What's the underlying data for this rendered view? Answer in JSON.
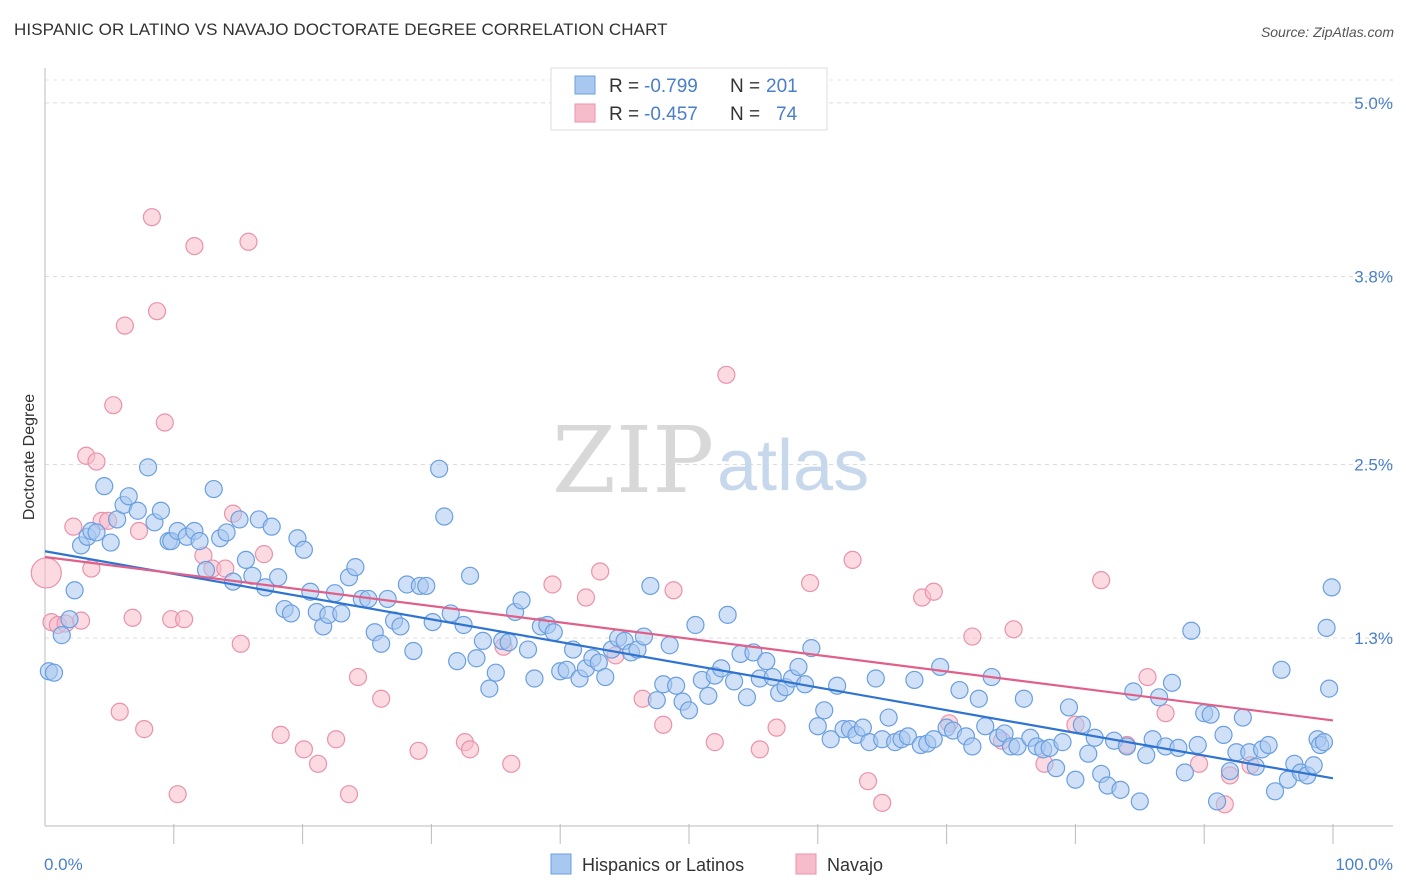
{
  "title": "HISPANIC OR LATINO VS NAVAJO DOCTORATE DEGREE CORRELATION CHART",
  "source": "Source: ZipAtlas.com",
  "watermark": {
    "part1": "ZIP",
    "part2": "atlas"
  },
  "legend_top": [
    {
      "r_label": "R = ",
      "r_value": "-0.799",
      "n_label": "N = ",
      "n_value": "201",
      "color": "#a9c8f0",
      "stroke": "#6a9fe0"
    },
    {
      "r_label": "R = ",
      "r_value": "-0.457",
      "n_label": "N = ",
      "n_value": "74",
      "color": "#f7bccb",
      "stroke": "#e993ab"
    }
  ],
  "legend_bottom": [
    {
      "label": "Hispanics or Latinos",
      "color": "#a9c8f0",
      "stroke": "#6a9fe0"
    },
    {
      "label": "Navajo",
      "color": "#f7bccb",
      "stroke": "#e993ab"
    }
  ],
  "colors": {
    "blue_fill": "#a9c8f0",
    "blue_stroke": "#6a9fe0",
    "blue_line": "#2f74d0",
    "pink_fill": "#f7bccb",
    "pink_stroke": "#e993ab",
    "pink_line": "#e0608a",
    "tick_text": "#4a7fc9"
  },
  "chart_data": {
    "type": "scatter",
    "title": "HISPANIC OR LATINO VS NAVAJO DOCTORATE DEGREE CORRELATION CHART",
    "xlabel": "",
    "ylabel": "Doctorate Degree",
    "xlim": [
      0,
      100
    ],
    "ylim": [
      0,
      5.2
    ],
    "x_tick_labels": [
      "0.0%",
      "100.0%"
    ],
    "y_ticks": [
      1.3,
      2.5,
      3.8,
      5.0
    ],
    "y_tick_labels": [
      "1.3%",
      "2.5%",
      "3.8%",
      "5.0%"
    ],
    "grid": true,
    "legend_position": "top-center",
    "series": [
      {
        "name": "Hispanics or Latinos",
        "r": -0.799,
        "n": 201,
        "trend": [
          [
            0,
            1.9
          ],
          [
            100,
            0.33
          ]
        ],
        "points": [
          [
            0.3,
            1.07
          ],
          [
            0.7,
            1.06
          ],
          [
            1.3,
            1.32
          ],
          [
            1.9,
            1.43
          ],
          [
            2.3,
            1.63
          ],
          [
            2.8,
            1.94
          ],
          [
            3.3,
            2.0
          ],
          [
            3.6,
            2.04
          ],
          [
            4.0,
            2.03
          ],
          [
            4.6,
            2.35
          ],
          [
            5.1,
            1.96
          ],
          [
            5.6,
            2.12
          ],
          [
            6.1,
            2.22
          ],
          [
            6.5,
            2.28
          ],
          [
            7.2,
            2.18
          ],
          [
            8.0,
            2.48
          ],
          [
            8.5,
            2.1
          ],
          [
            9.0,
            2.18
          ],
          [
            9.6,
            1.97
          ],
          [
            9.8,
            1.97
          ],
          [
            10.3,
            2.04
          ],
          [
            11.0,
            2.0
          ],
          [
            11.6,
            2.04
          ],
          [
            12.0,
            1.97
          ],
          [
            12.5,
            1.77
          ],
          [
            13.1,
            2.33
          ],
          [
            13.6,
            1.99
          ],
          [
            14.1,
            2.03
          ],
          [
            14.6,
            1.69
          ],
          [
            15.1,
            2.12
          ],
          [
            15.6,
            1.84
          ],
          [
            16.1,
            1.73
          ],
          [
            16.6,
            2.12
          ],
          [
            17.1,
            1.65
          ],
          [
            17.6,
            2.07
          ],
          [
            18.1,
            1.72
          ],
          [
            18.6,
            1.5
          ],
          [
            19.1,
            1.47
          ],
          [
            19.6,
            1.99
          ],
          [
            20.1,
            1.91
          ],
          [
            20.6,
            1.62
          ],
          [
            21.1,
            1.48
          ],
          [
            21.6,
            1.38
          ],
          [
            22.0,
            1.46
          ],
          [
            22.5,
            1.61
          ],
          [
            23.0,
            1.47
          ],
          [
            23.6,
            1.72
          ],
          [
            24.1,
            1.79
          ],
          [
            24.6,
            1.57
          ],
          [
            25.1,
            1.57
          ],
          [
            25.6,
            1.34
          ],
          [
            26.1,
            1.26
          ],
          [
            26.6,
            1.57
          ],
          [
            27.1,
            1.42
          ],
          [
            27.6,
            1.38
          ],
          [
            28.1,
            1.67
          ],
          [
            28.6,
            1.21
          ],
          [
            29.1,
            1.66
          ],
          [
            29.6,
            1.66
          ],
          [
            30.1,
            1.41
          ],
          [
            30.6,
            2.47
          ],
          [
            31.0,
            2.14
          ],
          [
            31.5,
            1.47
          ],
          [
            32.0,
            1.14
          ],
          [
            32.5,
            1.39
          ],
          [
            33.0,
            1.73
          ],
          [
            33.5,
            1.16
          ],
          [
            34.0,
            1.28
          ],
          [
            34.5,
            0.95
          ],
          [
            35.0,
            1.06
          ],
          [
            35.5,
            1.28
          ],
          [
            36.0,
            1.27
          ],
          [
            36.5,
            1.48
          ],
          [
            37.0,
            1.56
          ],
          [
            37.5,
            1.22
          ],
          [
            38.0,
            1.02
          ],
          [
            38.5,
            1.38
          ],
          [
            39.0,
            1.39
          ],
          [
            39.5,
            1.34
          ],
          [
            40.0,
            1.07
          ],
          [
            40.5,
            1.08
          ],
          [
            41.0,
            1.22
          ],
          [
            41.5,
            1.02
          ],
          [
            42.0,
            1.09
          ],
          [
            42.5,
            1.16
          ],
          [
            43.0,
            1.13
          ],
          [
            43.5,
            1.03
          ],
          [
            44.0,
            1.22
          ],
          [
            44.5,
            1.3
          ],
          [
            45.0,
            1.28
          ],
          [
            45.5,
            1.2
          ],
          [
            46.0,
            1.22
          ],
          [
            46.5,
            1.31
          ],
          [
            47.0,
            1.66
          ],
          [
            47.5,
            0.87
          ],
          [
            48.0,
            0.98
          ],
          [
            48.5,
            1.25
          ],
          [
            49.0,
            0.97
          ],
          [
            49.5,
            0.86
          ],
          [
            50.0,
            0.8
          ],
          [
            50.5,
            1.39
          ],
          [
            51.0,
            1.01
          ],
          [
            51.5,
            0.9
          ],
          [
            52.0,
            1.04
          ],
          [
            52.5,
            1.09
          ],
          [
            53.0,
            1.46
          ],
          [
            53.5,
            1.0
          ],
          [
            54.0,
            1.19
          ],
          [
            54.5,
            0.89
          ],
          [
            55.0,
            1.2
          ],
          [
            55.5,
            1.02
          ],
          [
            56.0,
            1.14
          ],
          [
            56.5,
            1.03
          ],
          [
            57.0,
            0.92
          ],
          [
            57.5,
            0.96
          ],
          [
            58.0,
            1.02
          ],
          [
            58.5,
            1.1
          ],
          [
            59.0,
            0.98
          ],
          [
            59.5,
            1.23
          ],
          [
            60.0,
            0.69
          ],
          [
            60.5,
            0.8
          ],
          [
            61.0,
            0.6
          ],
          [
            61.5,
            0.97
          ],
          [
            62.0,
            0.67
          ],
          [
            62.5,
            0.67
          ],
          [
            63.0,
            0.63
          ],
          [
            63.5,
            0.68
          ],
          [
            64.0,
            0.58
          ],
          [
            64.5,
            1.02
          ],
          [
            65.0,
            0.6
          ],
          [
            65.5,
            0.75
          ],
          [
            66.0,
            0.58
          ],
          [
            66.5,
            0.6
          ],
          [
            67.0,
            0.62
          ],
          [
            67.5,
            1.01
          ],
          [
            68.0,
            0.56
          ],
          [
            68.5,
            0.57
          ],
          [
            69.0,
            0.6
          ],
          [
            69.5,
            1.1
          ],
          [
            70.0,
            0.68
          ],
          [
            70.5,
            0.66
          ],
          [
            71.0,
            0.94
          ],
          [
            71.5,
            0.62
          ],
          [
            72.0,
            0.55
          ],
          [
            72.5,
            0.88
          ],
          [
            73.0,
            0.69
          ],
          [
            73.5,
            1.03
          ],
          [
            74.0,
            0.61
          ],
          [
            74.5,
            0.64
          ],
          [
            75.0,
            0.55
          ],
          [
            75.5,
            0.55
          ],
          [
            76.0,
            0.88
          ],
          [
            76.5,
            0.61
          ],
          [
            77.0,
            0.55
          ],
          [
            77.5,
            0.53
          ],
          [
            78.0,
            0.54
          ],
          [
            78.5,
            0.4
          ],
          [
            79.0,
            0.58
          ],
          [
            79.5,
            0.82
          ],
          [
            80.0,
            0.32
          ],
          [
            80.5,
            0.7
          ],
          [
            81.0,
            0.5
          ],
          [
            81.5,
            0.61
          ],
          [
            82.0,
            0.36
          ],
          [
            82.5,
            0.28
          ],
          [
            83.0,
            0.59
          ],
          [
            83.5,
            0.25
          ],
          [
            84.0,
            0.55
          ],
          [
            84.5,
            0.93
          ],
          [
            85.0,
            0.17
          ],
          [
            85.5,
            0.49
          ],
          [
            86.0,
            0.6
          ],
          [
            86.5,
            0.89
          ],
          [
            87.0,
            0.55
          ],
          [
            87.5,
            0.99
          ],
          [
            88.0,
            0.54
          ],
          [
            88.5,
            0.37
          ],
          [
            89.0,
            1.35
          ],
          [
            89.5,
            0.56
          ],
          [
            90.0,
            0.78
          ],
          [
            90.5,
            0.77
          ],
          [
            91.0,
            0.17
          ],
          [
            91.5,
            0.63
          ],
          [
            92.0,
            0.38
          ],
          [
            92.5,
            0.51
          ],
          [
            93.0,
            0.75
          ],
          [
            93.5,
            0.51
          ],
          [
            94.0,
            0.41
          ],
          [
            94.5,
            0.53
          ],
          [
            95.0,
            0.56
          ],
          [
            95.5,
            0.24
          ],
          [
            96.0,
            1.08
          ],
          [
            96.5,
            0.32
          ],
          [
            97.0,
            0.43
          ],
          [
            97.5,
            0.37
          ],
          [
            98.0,
            0.35
          ],
          [
            98.5,
            0.42
          ],
          [
            98.8,
            0.6
          ],
          [
            99.0,
            0.56
          ],
          [
            99.3,
            0.58
          ],
          [
            99.5,
            1.37
          ],
          [
            99.7,
            0.95
          ],
          [
            99.9,
            1.65
          ]
        ]
      },
      {
        "name": "Navajo",
        "r": -0.457,
        "n": 74,
        "trend": [
          [
            0,
            1.86
          ],
          [
            100,
            0.73
          ]
        ],
        "points": [
          [
            0.1,
            1.75
          ],
          [
            0.5,
            1.41
          ],
          [
            1.0,
            1.39
          ],
          [
            1.6,
            1.4
          ],
          [
            2.2,
            2.07
          ],
          [
            2.8,
            1.42
          ],
          [
            3.2,
            2.56
          ],
          [
            3.6,
            1.78
          ],
          [
            4.0,
            2.52
          ],
          [
            4.4,
            2.11
          ],
          [
            4.9,
            2.11
          ],
          [
            5.3,
            2.91
          ],
          [
            5.8,
            0.79
          ],
          [
            6.2,
            3.46
          ],
          [
            6.8,
            1.44
          ],
          [
            7.3,
            2.04
          ],
          [
            7.7,
            0.67
          ],
          [
            8.3,
            4.21
          ],
          [
            8.7,
            3.56
          ],
          [
            9.3,
            2.79
          ],
          [
            9.8,
            1.43
          ],
          [
            10.3,
            0.22
          ],
          [
            10.8,
            1.43
          ],
          [
            11.6,
            4.01
          ],
          [
            12.3,
            1.87
          ],
          [
            13.0,
            1.78
          ],
          [
            14.0,
            1.78
          ],
          [
            14.6,
            2.16
          ],
          [
            15.2,
            1.26
          ],
          [
            15.8,
            4.04
          ],
          [
            17.0,
            1.88
          ],
          [
            18.3,
            0.63
          ],
          [
            20.1,
            0.53
          ],
          [
            21.2,
            0.43
          ],
          [
            22.6,
            0.6
          ],
          [
            23.6,
            0.22
          ],
          [
            24.3,
            1.03
          ],
          [
            26.1,
            0.88
          ],
          [
            29.0,
            0.52
          ],
          [
            32.6,
            0.58
          ],
          [
            33.0,
            0.53
          ],
          [
            35.6,
            1.24
          ],
          [
            36.2,
            0.43
          ],
          [
            39.4,
            1.67
          ],
          [
            42.0,
            1.58
          ],
          [
            43.1,
            1.76
          ],
          [
            44.3,
            1.18
          ],
          [
            46.4,
            0.88
          ],
          [
            48.0,
            0.7
          ],
          [
            48.8,
            1.63
          ],
          [
            52.0,
            0.58
          ],
          [
            52.9,
            3.12
          ],
          [
            55.5,
            0.53
          ],
          [
            56.8,
            0.68
          ],
          [
            59.4,
            1.68
          ],
          [
            62.7,
            1.84
          ],
          [
            63.9,
            0.31
          ],
          [
            65.0,
            0.16
          ],
          [
            68.1,
            1.58
          ],
          [
            69.0,
            1.62
          ],
          [
            70.2,
            0.71
          ],
          [
            72.0,
            1.31
          ],
          [
            74.3,
            0.59
          ],
          [
            75.2,
            1.36
          ],
          [
            77.6,
            0.43
          ],
          [
            80.0,
            0.7
          ],
          [
            82.0,
            1.7
          ],
          [
            84.0,
            0.56
          ],
          [
            85.6,
            1.03
          ],
          [
            87.0,
            0.78
          ],
          [
            89.6,
            0.43
          ],
          [
            91.6,
            0.15
          ],
          [
            92.0,
            0.35
          ],
          [
            93.6,
            0.42
          ]
        ]
      }
    ]
  }
}
